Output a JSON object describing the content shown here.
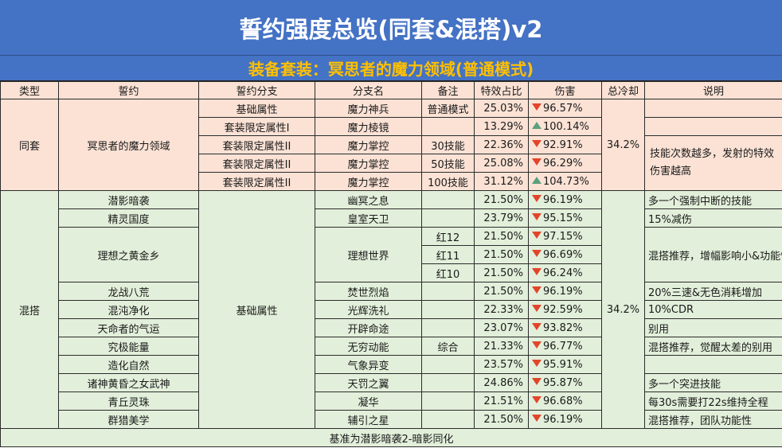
{
  "title": "誓约强度总览(同套&混搭)v2",
  "subtitle": "装备套装：冥思者的魔力领域(普通模式)",
  "headers": [
    "类型",
    "誓约",
    "誓约分支",
    "分支名",
    "备注",
    "特效占比",
    "伤害",
    "总冷却",
    "说明"
  ],
  "tongtao": {
    "type": "同套",
    "oath": "冥思者的魔力领域",
    "cooldown": "34.2%",
    "rows": [
      {
        "branch": "基础属性",
        "name": "魔力神兵",
        "note": "普通模式",
        "ratio": "25.03%",
        "dir": "down",
        "dmg": "96.57%"
      },
      {
        "branch": "套装限定属性I",
        "name": "魔力棱镜",
        "note": "",
        "ratio": "13.29%",
        "dir": "up",
        "dmg": "100.14%"
      },
      {
        "branch": "套装限定属性II",
        "name": "魔力掌控",
        "note": "30技能",
        "ratio": "22.36%",
        "dir": "down",
        "dmg": "92.91%"
      },
      {
        "branch": "套装限定属性II",
        "name": "魔力掌控",
        "note": "50技能",
        "ratio": "25.08%",
        "dir": "down",
        "dmg": "96.29%"
      },
      {
        "branch": "套装限定属性II",
        "name": "魔力掌控",
        "note": "100技能",
        "ratio": "31.12%",
        "dir": "up",
        "dmg": "104.73%"
      }
    ],
    "desc": "技能次数越多，发射的特效伤害越高"
  },
  "hunda": {
    "type": "混搭",
    "branch": "基础属性",
    "cooldown": "34.2%",
    "rows": [
      {
        "oath": "潜影暗袭",
        "name": "幽冥之息",
        "note": "",
        "ratio": "21.50%",
        "dir": "down",
        "dmg": "96.19%",
        "desc": "多一个强制中断的技能"
      },
      {
        "oath": "精灵国度",
        "name": "皇室天卫",
        "note": "",
        "ratio": "23.79%",
        "dir": "down",
        "dmg": "95.15%",
        "desc": "15%减伤"
      },
      {
        "oath": "理想之黄金乡",
        "name": "理想世界",
        "note": "红12",
        "ratio": "21.50%",
        "dir": "down",
        "dmg": "97.15%",
        "desc": "混搭推荐，增幅影响小&功能性强"
      },
      {
        "note": "红11",
        "ratio": "21.50%",
        "dir": "down",
        "dmg": "96.69%"
      },
      {
        "note": "红10",
        "ratio": "21.50%",
        "dir": "down",
        "dmg": "96.24%"
      },
      {
        "oath": "龙战八荒",
        "name": "焚世烈焰",
        "note": "",
        "ratio": "21.50%",
        "dir": "down",
        "dmg": "96.19%",
        "desc": "20%三速&无色消耗增加"
      },
      {
        "oath": "混沌净化",
        "name": "光辉洗礼",
        "note": "",
        "ratio": "22.33%",
        "dir": "down",
        "dmg": "92.59%",
        "desc": "10%CDR"
      },
      {
        "oath": "天命者的气运",
        "name": "开辟命途",
        "note": "",
        "ratio": "23.07%",
        "dir": "down",
        "dmg": "93.82%",
        "desc": "别用"
      },
      {
        "oath": "究极能量",
        "name": "无穷动能",
        "note": "综合",
        "ratio": "21.33%",
        "dir": "down",
        "dmg": "96.77%",
        "desc": "混搭推荐，觉醒太差的别用"
      },
      {
        "oath": "造化自然",
        "name": "气象异变",
        "note": "",
        "ratio": "23.57%",
        "dir": "down",
        "dmg": "95.91%",
        "desc": ""
      },
      {
        "oath": "诸神黄昏之女武神",
        "name": "天罚之翼",
        "note": "",
        "ratio": "24.86%",
        "dir": "down",
        "dmg": "95.87%",
        "desc": "多一个突进技能"
      },
      {
        "oath": "青丘灵珠",
        "name": "凝华",
        "note": "",
        "ratio": "21.51%",
        "dir": "down",
        "dmg": "96.68%",
        "desc": "每30s需要打22s维持全程"
      },
      {
        "oath": "群猎美学",
        "name": "辅引之星",
        "note": "",
        "ratio": "21.50%",
        "dir": "down",
        "dmg": "96.19%",
        "desc": "混搭推荐，团队功能性"
      }
    ]
  },
  "footer": "基准为潜影暗袭2-暗影同化",
  "colors": {
    "title_bg": "#4472c4",
    "subtitle_text": "#ffc000",
    "set_bg": "#fbe2d5",
    "mix_bg": "#e2efda",
    "down": "#e2452a",
    "up": "#5aa07c"
  }
}
